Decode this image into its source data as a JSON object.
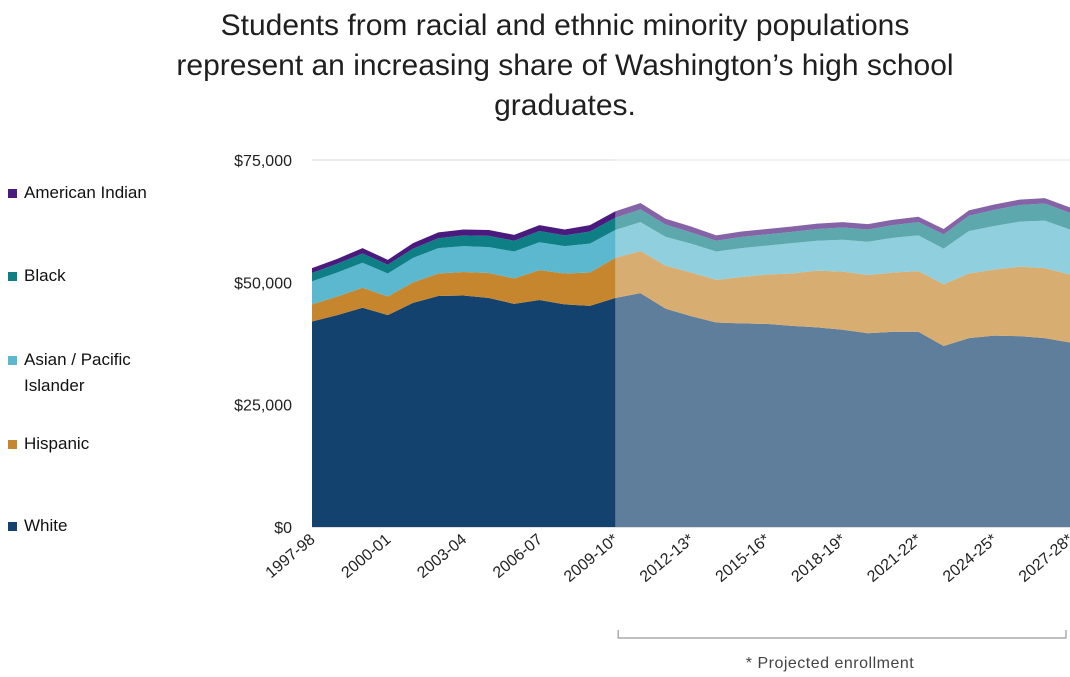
{
  "title_lines": [
    "Students from racial and ethnic minority populations",
    "represent an increasing share of Washington’s high school",
    "graduates."
  ],
  "footnote": "* Projected enrollment",
  "colors": {
    "white": "#14426e",
    "hispanic": "#c6862e",
    "asian_pacific_islander": "#5bb8cf",
    "black": "#0f7f86",
    "american_indian": "#4b1a7e"
  },
  "chart_data": {
    "type": "area",
    "stacked": true,
    "ylim": [
      0,
      75000
    ],
    "y_ticks": [
      0,
      25000,
      50000,
      75000
    ],
    "y_tick_labels": [
      "$0",
      "$25,000",
      "$50,000",
      "$75,000"
    ],
    "x": [
      "1997-98",
      "1998-99",
      "1999-00",
      "2000-01",
      "2001-02",
      "2002-03",
      "2003-04",
      "2004-05",
      "2005-06",
      "2006-07",
      "2007-08",
      "2008-09",
      "2009-10*",
      "2010-11*",
      "2011-12*",
      "2012-13*",
      "2013-14*",
      "2014-15*",
      "2015-16*",
      "2016-17*",
      "2017-18*",
      "2018-19*",
      "2019-20*",
      "2020-21*",
      "2021-22*",
      "2022-23*",
      "2023-24*",
      "2024-25*",
      "2025-26*",
      "2026-27*",
      "2027-28*"
    ],
    "x_tick_labels": [
      "1997-98",
      "2000-01",
      "2003-04",
      "2006-07",
      "2009-10*",
      "2012-13*",
      "2015-16*",
      "2018-19*",
      "2021-22*",
      "2024-25*",
      "2027-28*"
    ],
    "projection_start": "2009-10*",
    "legend": {
      "position": "left",
      "entries": [
        {
          "name": "American Indian"
        },
        {
          "name": "Black"
        },
        {
          "name": "Asian / Pacific Islander"
        },
        {
          "name": "Hispanic"
        },
        {
          "name": "White"
        }
      ]
    },
    "series": [
      {
        "name": "White",
        "values": [
          42000,
          43300,
          44800,
          43300,
          45800,
          47200,
          47300,
          46800,
          45600,
          46400,
          45500,
          45200,
          46800,
          47800,
          44600,
          43100,
          41800,
          41600,
          41500,
          41100,
          40800,
          40300,
          39600,
          39900,
          39900,
          37000,
          38600,
          39100,
          39000,
          38600,
          37700
        ]
      },
      {
        "name": "Hispanic",
        "values": [
          3500,
          3800,
          4100,
          3800,
          4200,
          4600,
          4800,
          5100,
          5200,
          6100,
          6300,
          6800,
          8200,
          8600,
          8800,
          8900,
          8700,
          9500,
          10100,
          10700,
          11600,
          11900,
          11900,
          12100,
          12400,
          12600,
          13200,
          13500,
          14200,
          14300,
          13900
        ]
      },
      {
        "name": "Asian / Pacific Islander",
        "values": [
          4700,
          4900,
          5100,
          4700,
          5000,
          5200,
          5300,
          5300,
          5500,
          5700,
          5600,
          5900,
          5700,
          5900,
          5900,
          5900,
          5800,
          5900,
          5900,
          6200,
          6100,
          6500,
          6800,
          7100,
          7300,
          7300,
          8700,
          8900,
          9200,
          9700,
          9200
        ]
      },
      {
        "name": "Black",
        "values": [
          1700,
          1800,
          1900,
          1800,
          1900,
          2000,
          2200,
          2300,
          2200,
          2300,
          2200,
          2500,
          2500,
          2600,
          2500,
          2300,
          2200,
          2300,
          2300,
          2300,
          2400,
          2500,
          2500,
          2600,
          2700,
          2900,
          3100,
          3300,
          3400,
          3500,
          3400
        ]
      },
      {
        "name": "American Indian",
        "values": [
          1000,
          1000,
          1100,
          1000,
          1100,
          1200,
          1200,
          1200,
          1200,
          1200,
          1200,
          1300,
          1300,
          1300,
          1200,
          1200,
          1100,
          1100,
          1100,
          1100,
          1100,
          1100,
          1100,
          1100,
          1100,
          1100,
          1100,
          1100,
          1100,
          1100,
          1100
        ]
      }
    ]
  }
}
